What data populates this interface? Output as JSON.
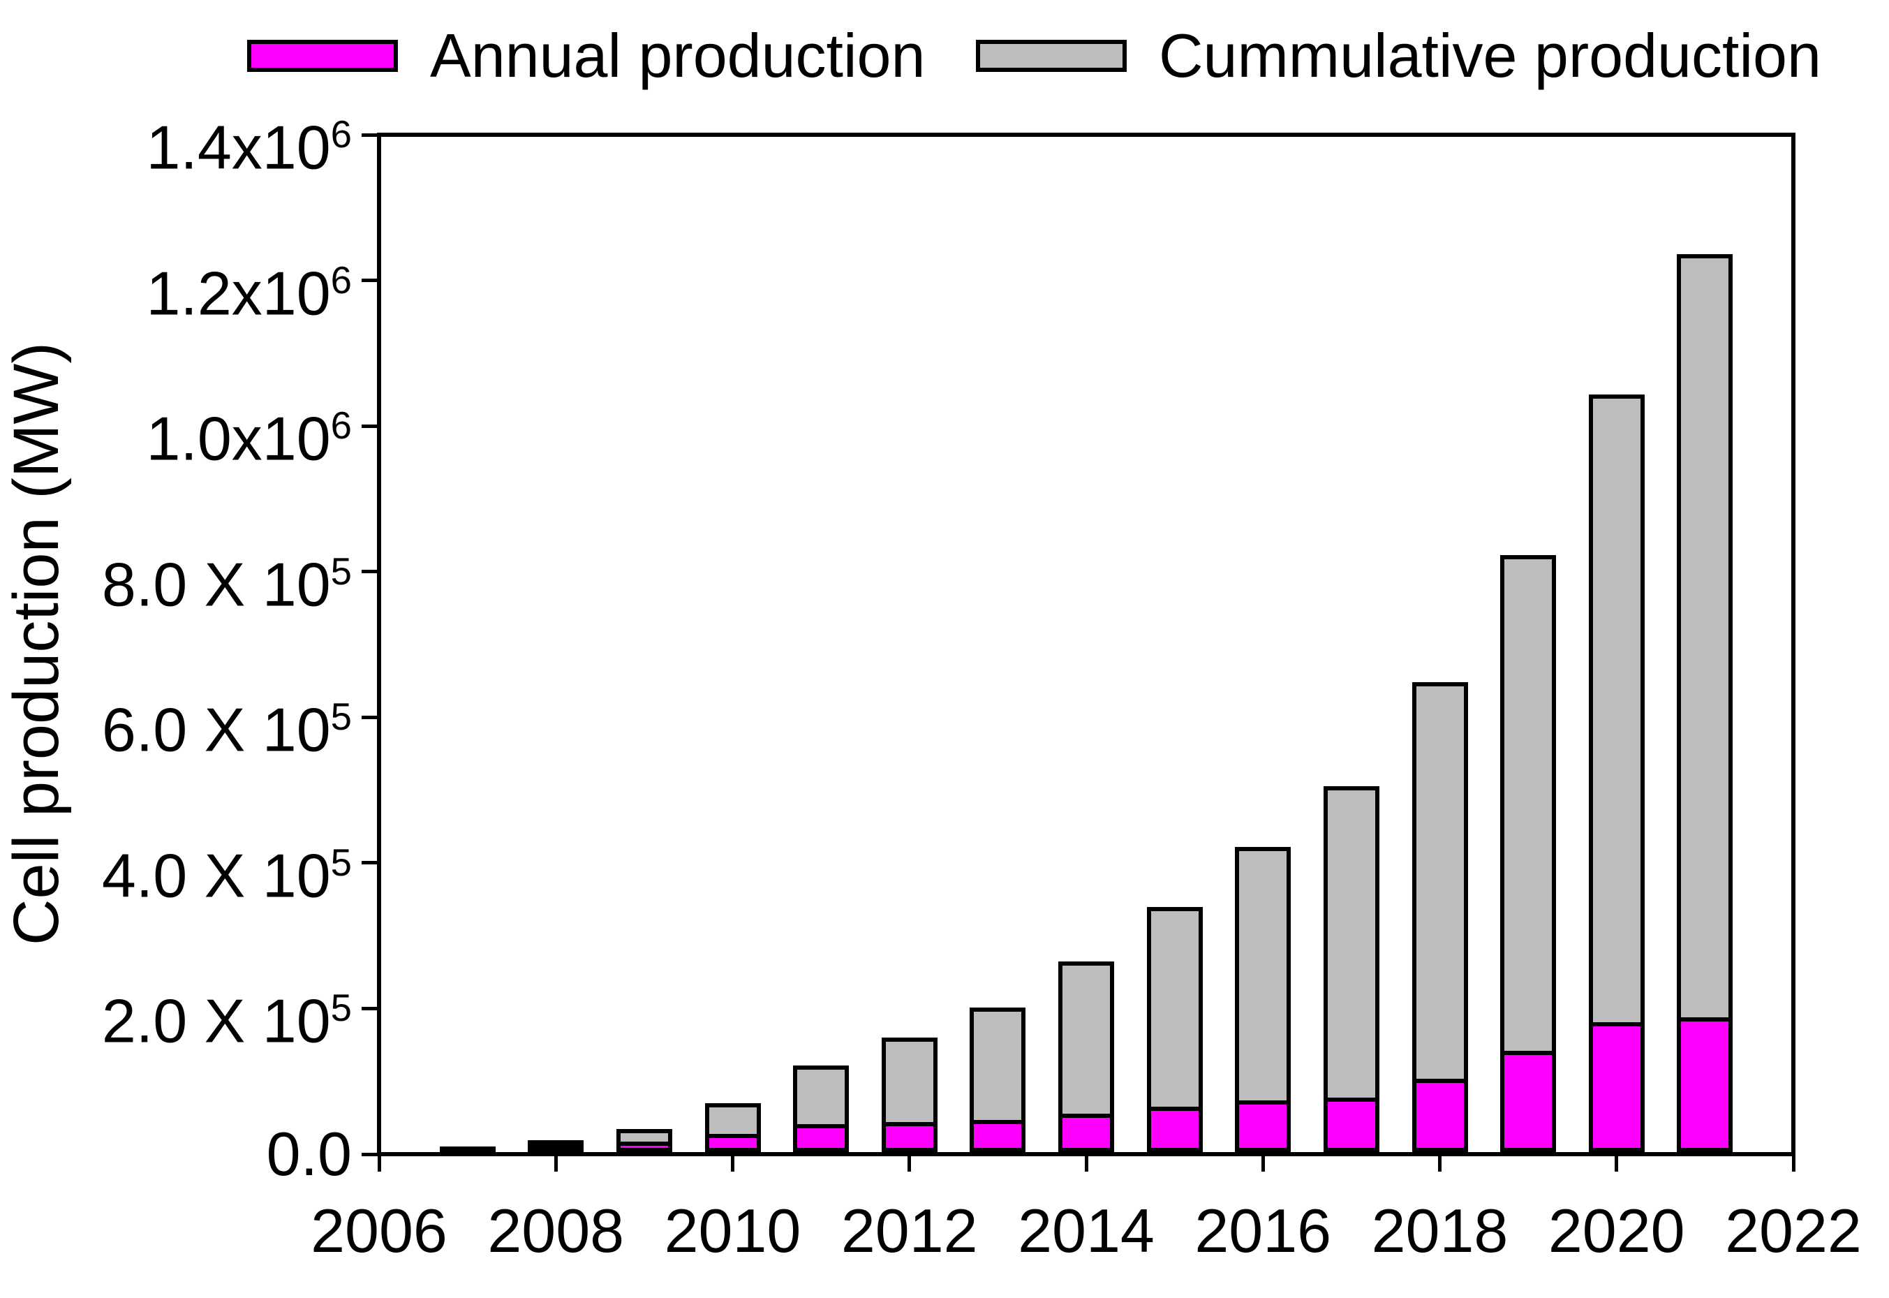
{
  "legend": {
    "items": [
      {
        "label": "Annual production",
        "color": "#FF00FF"
      },
      {
        "label": "Cummulative production",
        "color": "#BDBDBD"
      }
    ]
  },
  "y_axis": {
    "title": "Cell production (MW)",
    "tick_values": [
      0,
      200000,
      400000,
      600000,
      800000,
      1000000,
      1200000,
      1400000
    ],
    "tick_labels": [
      "0.0",
      "2.0 X 10^5",
      "4.0 X 10^5",
      "6.0 X 10^5",
      "8.0 X 10^5",
      "1.0x10^6",
      "1.2x10^6",
      "1.4x10^6"
    ]
  },
  "x_axis": {
    "tick_years": [
      2006,
      2008,
      2010,
      2012,
      2014,
      2016,
      2018,
      2020,
      2022
    ],
    "tick_labels": [
      "2006",
      "2008",
      "2010",
      "2012",
      "2014",
      "2016",
      "2018",
      "2020",
      "2022"
    ]
  },
  "chart_data": {
    "type": "bar",
    "title": "",
    "xlabel": "",
    "ylabel": "Cell production (MW)",
    "x": [
      2007,
      2008,
      2009,
      2010,
      2011,
      2012,
      2013,
      2014,
      2015,
      2016,
      2017,
      2018,
      2019,
      2020,
      2021
    ],
    "series": [
      {
        "name": "Annual production",
        "color": "#FF00FF",
        "values": [
          4000,
          7500,
          11500,
          22000,
          35500,
          38500,
          41500,
          50000,
          59500,
          68000,
          72000,
          98000,
          136000,
          175000,
          182000
        ]
      },
      {
        "name": "Cummulative production",
        "color": "#BDBDBD",
        "values": [
          9000,
          19000,
          34500,
          70000,
          122000,
          160500,
          201500,
          265000,
          339000,
          422000,
          505000,
          648000,
          823000,
          1043000,
          1236000
        ]
      }
    ],
    "bar_style": "overlaid: full bar height = cumulative value, magenta annual segment drawn at base of same bar",
    "xlim": [
      2006,
      2022
    ],
    "ylim": [
      0,
      1400000
    ],
    "grid": false,
    "legend_position": "top"
  },
  "colors": {
    "annual": "#FF00FF",
    "cumulative": "#BDBDBD",
    "axis": "#000000",
    "background": "#FFFFFF"
  }
}
